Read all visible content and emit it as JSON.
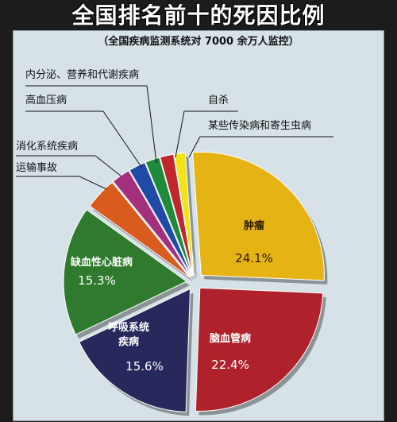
{
  "title": "全国排名前十的死因比例",
  "subtitle": "（全国疾病监测系统对 7000 余万人监控）",
  "chart_data": {
    "type": "pie",
    "title": "全国排名前十的死因比例",
    "subtitle": "（全国疾病监测系统对 7000 余万人监控）",
    "slices": [
      {
        "label": "肿瘤",
        "value": 24.1,
        "value_label": "24.1%",
        "color": "#e6b314"
      },
      {
        "label": "脑血管病",
        "value": 22.4,
        "value_label": "22.4%",
        "color": "#b0222b"
      },
      {
        "label": "呼吸系统疾病",
        "value": 15.6,
        "value_label": "15.6%",
        "color": "#27285c"
      },
      {
        "label": "缺血性心脏病",
        "value": 15.3,
        "value_label": "15.3%",
        "color": "#2f7a2e"
      },
      {
        "label": "运输事故",
        "value": 3.8,
        "value_label": "",
        "color": "#d95b1e"
      },
      {
        "label": "消化系统疾病",
        "value": 2.2,
        "value_label": "",
        "color": "#a4307d"
      },
      {
        "label": "高血压病",
        "value": 2.0,
        "value_label": "",
        "color": "#1f4aa6"
      },
      {
        "label": "内分泌、营养和代谢疾病",
        "value": 1.7,
        "value_label": "",
        "color": "#1e8a3a"
      },
      {
        "label": "自杀",
        "value": 1.6,
        "value_label": "",
        "color": "#c0272d"
      },
      {
        "label": "某些传染病和寄生虫病",
        "value": 1.3,
        "value_label": "",
        "color": "#f2e315"
      }
    ]
  }
}
